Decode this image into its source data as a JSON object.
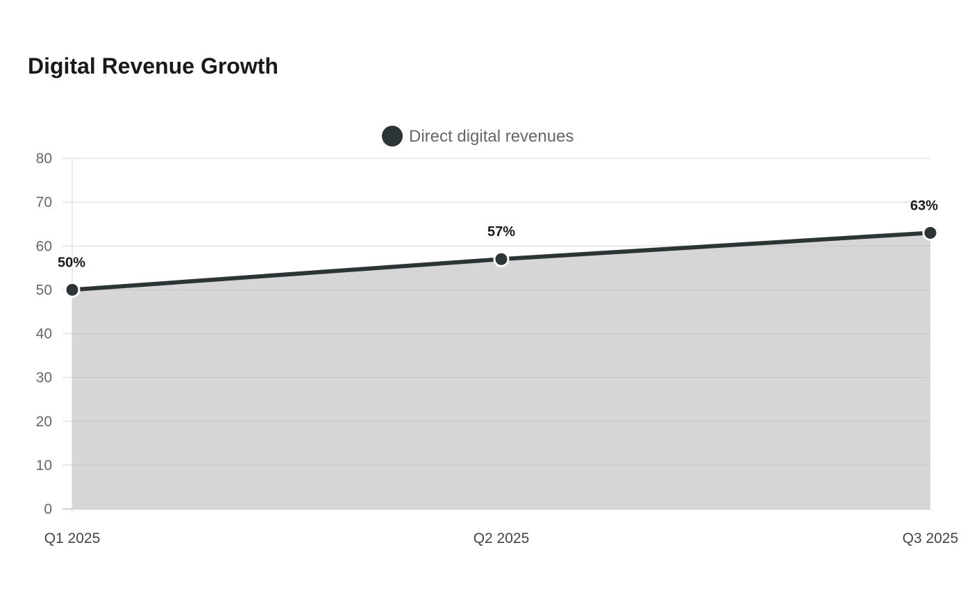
{
  "chart_data": {
    "type": "area",
    "title": "Digital Revenue Growth",
    "xlabel": "",
    "ylabel": "",
    "categories": [
      "Q1 2025",
      "Q2 2025",
      "Q3 2025"
    ],
    "series": [
      {
        "name": "Direct digital revenues",
        "values": [
          50,
          57,
          63
        ],
        "data_labels": [
          "50%",
          "57%",
          "63%"
        ]
      }
    ],
    "ylim": [
      0,
      80
    ],
    "yticks": [
      0,
      10,
      20,
      30,
      40,
      50,
      60,
      70,
      80
    ],
    "grid": true,
    "legend": "top-center",
    "colors": {
      "line": "#2d3436",
      "fill": "#d6d6d6",
      "grid": "#e3e3e3"
    }
  }
}
